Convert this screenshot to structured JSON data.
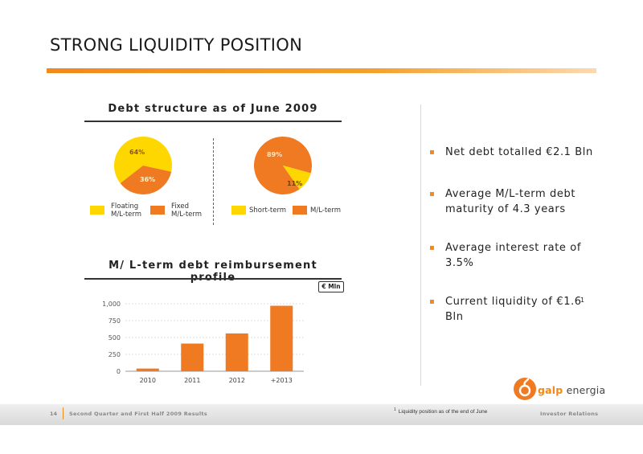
{
  "slide": {
    "title": "STRONG LIQUIDITY POSITION"
  },
  "debt_structure": {
    "title": "Debt structure as of June 2009",
    "pie_left": {
      "slices": [
        {
          "label": "64%",
          "value": 64,
          "color": "#ffd700"
        },
        {
          "label": "36%",
          "value": 36,
          "color": "#f07a22"
        }
      ],
      "legend": [
        {
          "label_line1": "Floating",
          "label_line2": "M/L-term",
          "color": "#ffd700"
        },
        {
          "label_line1": "Fixed",
          "label_line2": "M/L-term",
          "color": "#f07a22"
        }
      ]
    },
    "pie_right": {
      "slices": [
        {
          "label": "89%",
          "value": 89,
          "color": "#f07a22"
        },
        {
          "label": "11%",
          "value": 11,
          "color": "#ffd700"
        }
      ],
      "legend": [
        {
          "label": "Short-term",
          "color": "#ffd700"
        },
        {
          "label": "M/L-term",
          "color": "#f07a22"
        }
      ]
    }
  },
  "reimbursement": {
    "title": "M/ L-term debt reimbursement profile",
    "unit": "€ Mln"
  },
  "chart_data": {
    "type": "bar",
    "title": "M/ L-term debt reimbursement profile",
    "categories": [
      "2010",
      "2011",
      "2012",
      "+2013"
    ],
    "values": [
      40,
      410,
      560,
      970
    ],
    "ylim": [
      0,
      1000
    ],
    "yticks": [
      "0",
      "250",
      "500",
      "750",
      "1,000"
    ],
    "ytick_values": [
      0,
      250,
      500,
      750,
      1000
    ],
    "grid": true,
    "bar_color": "#f07a22"
  },
  "bullets": [
    {
      "text": "Net debt totalled €2.1 Bln",
      "sup": ""
    },
    {
      "text": "Average M/L-term debt maturity of 4.3 years",
      "sup": ""
    },
    {
      "text": "Average interest rate of 3.5%",
      "sup": ""
    },
    {
      "text": "Current liquidity of €1.6 Bln",
      "sup": "1"
    }
  ],
  "logo": {
    "brand": "galp",
    "suffix": "energia"
  },
  "footer": {
    "page_number": "14",
    "left_text": "Second Quarter and First Half 2009 Results",
    "right_text": "Investor Relations",
    "footnote_marker": "1",
    "footnote": "Liquidity position as of  the end of June"
  }
}
